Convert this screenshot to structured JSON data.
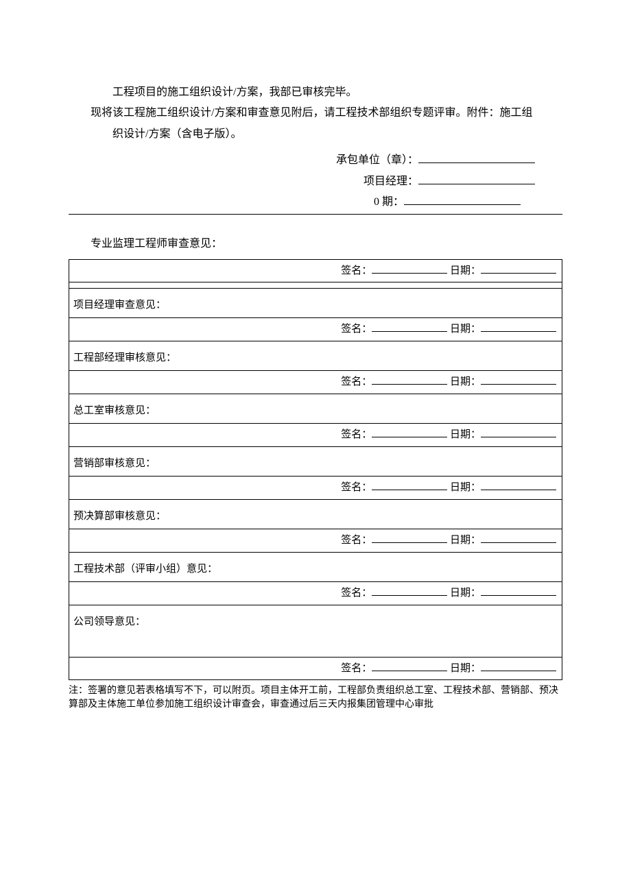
{
  "intro": {
    "line1": "工程项目的施工组织设计/方案，我部已审核完毕。",
    "line2": "现将该工程施工组织设计/方案和审查意见附后，请工程技术部组织专题评审。附件：施工组",
    "line3": "织设计/方案（含电子版）。"
  },
  "meta": {
    "label1": "承包单位（章）：",
    "label2": "项目经理：",
    "label3": "0 期："
  },
  "supervisor_title": "专业监理工程师审查意见：",
  "sig_label": "签名：",
  "date_label": "日期：",
  "rows": [
    {
      "title": "项目经理审查意见：",
      "tall": false
    },
    {
      "title": "工程部经理审核意见：",
      "tall": false
    },
    {
      "title": "总工室审核意见：",
      "tall": false
    },
    {
      "title": "营销部审核意见：",
      "tall": false
    },
    {
      "title": "预决算部审核意见：",
      "tall": false
    },
    {
      "title": "工程技术部（评审小组）意见：",
      "tall": false
    },
    {
      "title": "公司领导意见：",
      "tall": true
    }
  ],
  "notes": "注：签署的意见若表格填写不下，可以附页。项目主体开工前，工程部负责组织总工室、工程技术部、营销部、预决算部及主体施工单位参加施工组织设计审查会，审查通过后三天内报集团管理中心审批"
}
